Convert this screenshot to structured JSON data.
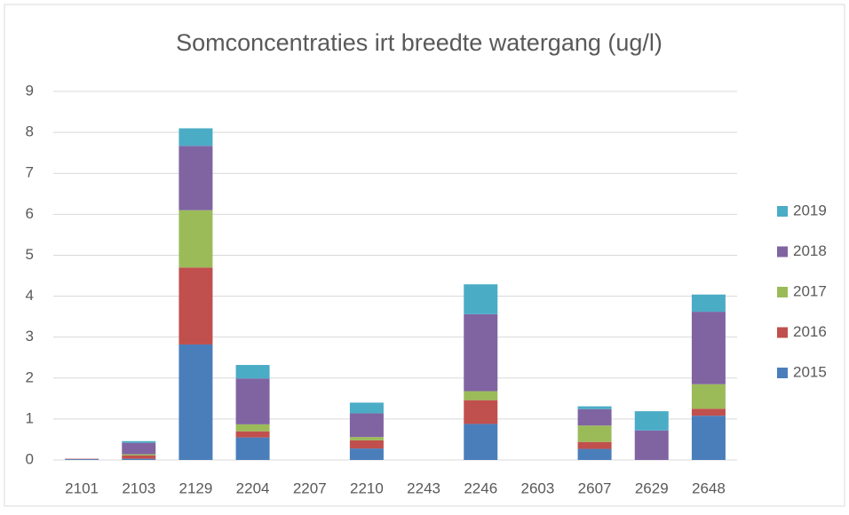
{
  "chart_data": {
    "type": "stacked_bar",
    "title": "Somconcentraties irt breedte watergang (ug/l)",
    "categories": [
      "2101",
      "2103",
      "2129",
      "2204",
      "2207",
      "2210",
      "2243",
      "2246",
      "2603",
      "2607",
      "2629",
      "2648"
    ],
    "series": [
      {
        "name": "2015",
        "color": "#4a7ebb",
        "values": [
          0.02,
          0.03,
          2.82,
          0.55,
          0,
          0.28,
          0,
          0.88,
          0,
          0.27,
          0,
          1.08
        ]
      },
      {
        "name": "2016",
        "color": "#c0504d",
        "values": [
          0.01,
          0.08,
          1.88,
          0.15,
          0,
          0.2,
          0,
          0.58,
          0,
          0.17,
          0,
          0.17
        ]
      },
      {
        "name": "2017",
        "color": "#9bbb59",
        "values": [
          0,
          0.03,
          1.4,
          0.17,
          0,
          0.08,
          0,
          0.22,
          0,
          0.4,
          0,
          0.6
        ]
      },
      {
        "name": "2018",
        "color": "#8064a2",
        "values": [
          0,
          0.28,
          1.57,
          1.12,
          0,
          0.58,
          0,
          1.88,
          0,
          0.4,
          0.72,
          1.77
        ]
      },
      {
        "name": "2019",
        "color": "#4bacc6",
        "values": [
          0,
          0.04,
          0.43,
          0.33,
          0,
          0.26,
          0,
          0.73,
          0,
          0.07,
          0.47,
          0.42
        ]
      }
    ],
    "ylim": [
      0,
      9
    ],
    "yticks": [
      0,
      1,
      2,
      3,
      4,
      5,
      6,
      7,
      8,
      9
    ],
    "grid": true,
    "legend": "right"
  }
}
